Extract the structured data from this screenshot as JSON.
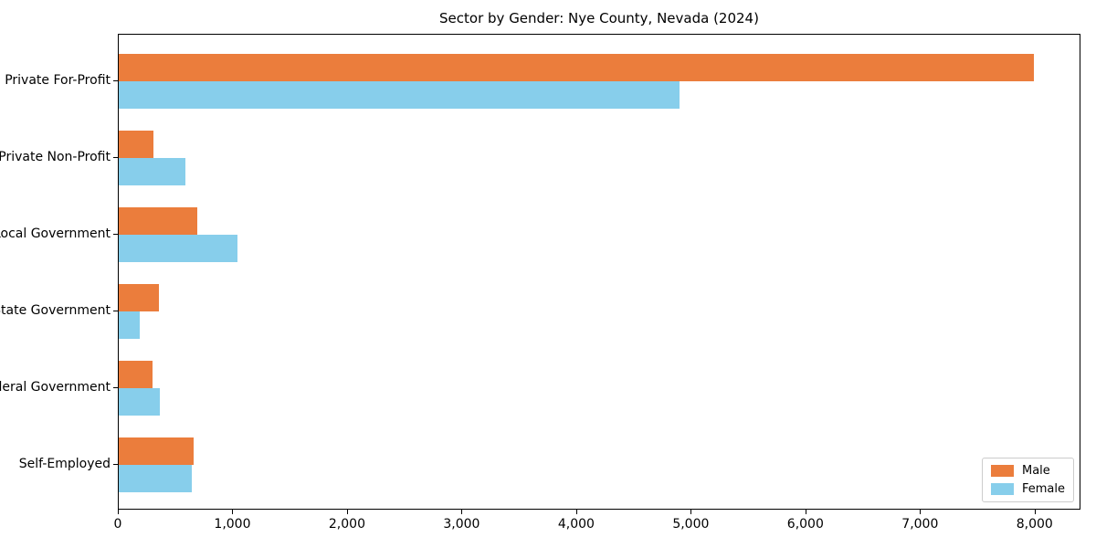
{
  "chart_data": {
    "type": "bar",
    "orientation": "horizontal",
    "title": "Sector by Gender: Nye County, Nevada (2024)",
    "categories": [
      "Private For-Profit",
      "Private Non-Profit",
      "Local Government",
      "State Government",
      "Federal Government",
      "Self-Employed"
    ],
    "series": [
      {
        "name": "Male",
        "color": "#EB7D3C",
        "values": [
          8000,
          305,
          685,
          350,
          295,
          655
        ]
      },
      {
        "name": "Female",
        "color": "#87CEEB",
        "values": [
          4900,
          580,
          1040,
          185,
          360,
          640
        ]
      }
    ],
    "xlabel": "",
    "ylabel": "",
    "xlim": [
      0,
      8400
    ],
    "xticks": [
      0,
      1000,
      2000,
      3000,
      4000,
      5000,
      6000,
      7000,
      8000
    ],
    "xtick_labels": [
      "0",
      "1,000",
      "2,000",
      "3,000",
      "4,000",
      "5,000",
      "6,000",
      "7,000",
      "8,000"
    ],
    "grid": false,
    "legend_position": "lower right",
    "spine_color": "#000000"
  }
}
